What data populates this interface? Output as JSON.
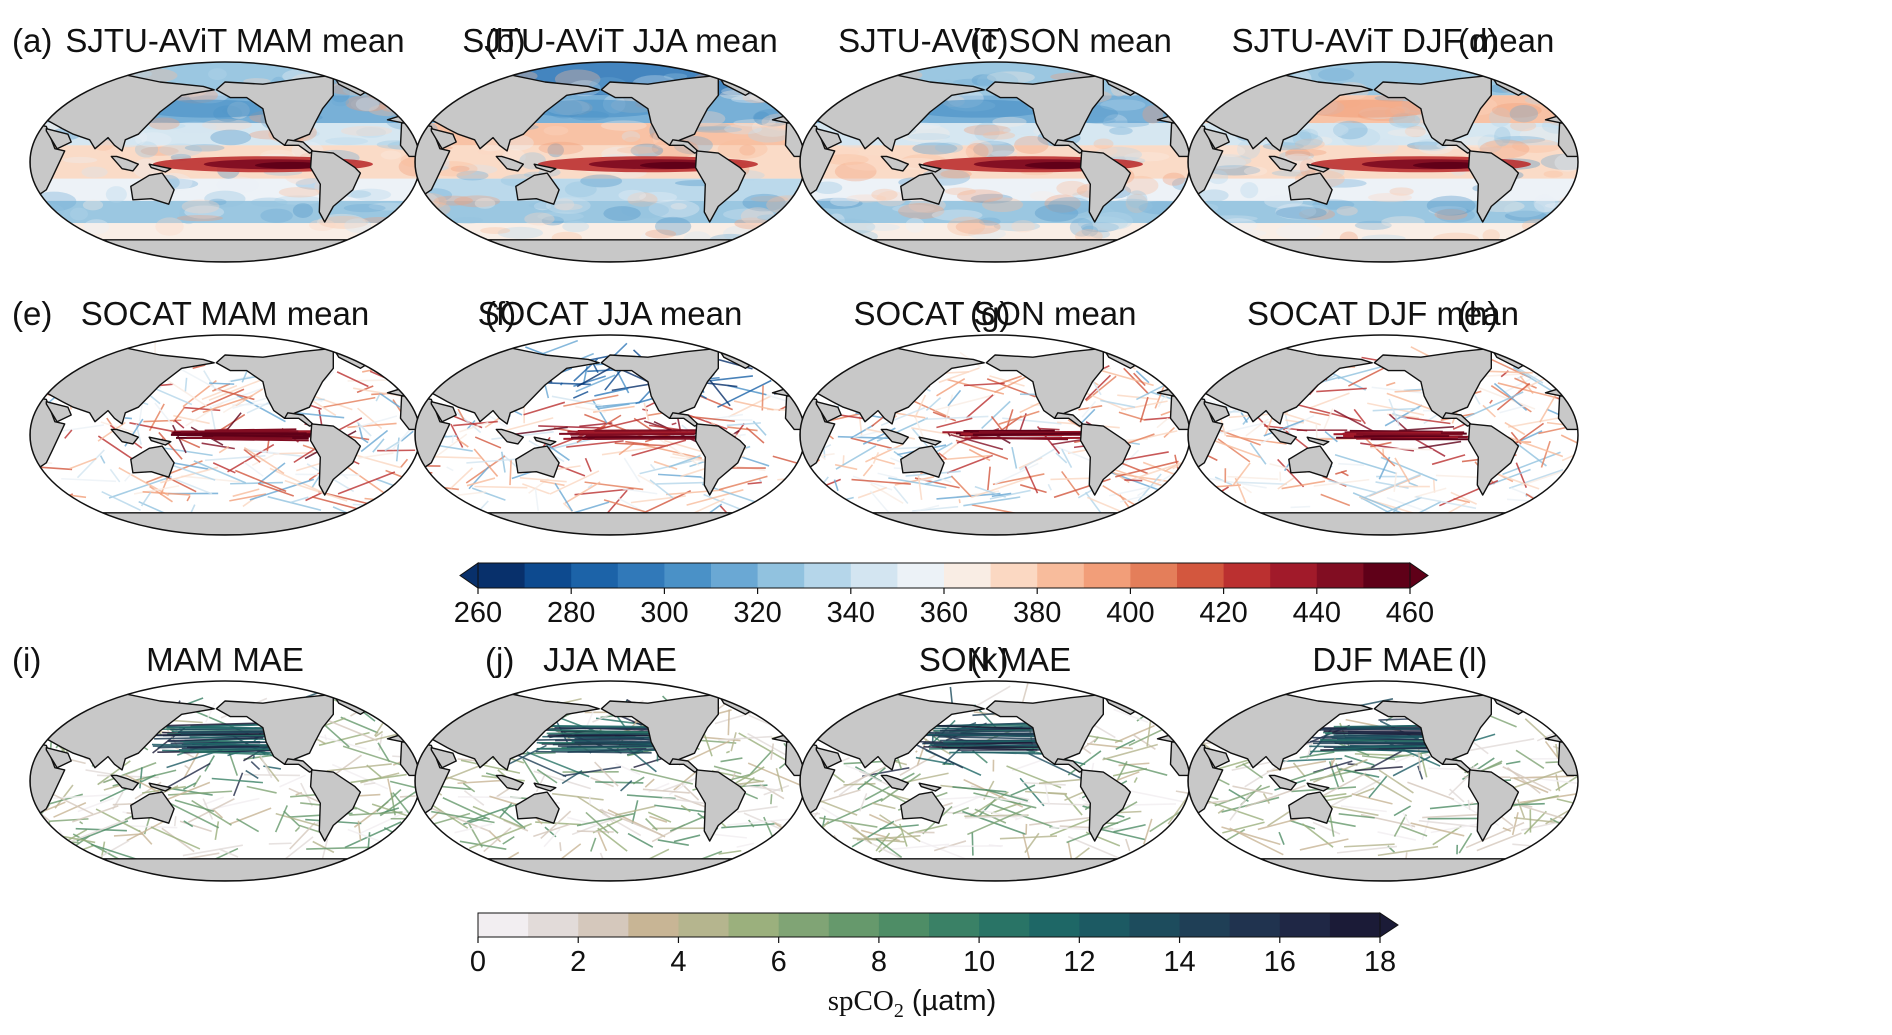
{
  "colors": {
    "ocean_bg": "#f5f1ec",
    "land": "#c8c8c8",
    "coast": "#111111",
    "diverging_palette": [
      "#08306b",
      "#0d4a8f",
      "#1c63a8",
      "#3179b9",
      "#4a91c7",
      "#6aa8d4",
      "#91c2df",
      "#b5d6ea",
      "#d3e5f1",
      "#ecf2f7",
      "#f9ede4",
      "#fbd8c2",
      "#f8bc9c",
      "#f29e79",
      "#e47e5a",
      "#d3573e",
      "#bb3030",
      "#a11a2a",
      "#810d22",
      "#5f0018"
    ],
    "sequential_palette": [
      "#f2eef1",
      "#e2dbd9",
      "#d5c8bc",
      "#c8b595",
      "#b5b58e",
      "#9bb07d",
      "#80a475",
      "#66996c",
      "#4e8d66",
      "#3a8166",
      "#297466",
      "#1e6766",
      "#1c5a63",
      "#1d4c5d",
      "#1f3f56",
      "#20334f",
      "#1f2745",
      "#1b1b37"
    ]
  },
  "panels": [
    {
      "label": "(a)",
      "title": "SJTU-AViT MAM mean"
    },
    {
      "label": "(b)",
      "title": "SJTU-AViT JJA mean"
    },
    {
      "label": "(c)",
      "title": "SJTU-AViT SON mean"
    },
    {
      "label": "(d)",
      "title": "SJTU-AViT DJF mean"
    },
    {
      "label": "(e)",
      "title": "SOCAT MAM mean"
    },
    {
      "label": "(f)",
      "title": "SOCAT JJA mean"
    },
    {
      "label": "(g)",
      "title": "SOCAT SON mean"
    },
    {
      "label": "(h)",
      "title": "SOCAT DJF mean"
    },
    {
      "label": "(i)",
      "title": "MAM MAE"
    },
    {
      "label": "(j)",
      "title": "JJA MAE"
    },
    {
      "label": "(k)",
      "title": "SON MAE"
    },
    {
      "label": "(l)",
      "title": "DJF MAE"
    }
  ],
  "colorbars": {
    "mean": {
      "ticks": [
        "260",
        "280",
        "300",
        "320",
        "340",
        "360",
        "380",
        "400",
        "420",
        "440",
        "460"
      ]
    },
    "mae": {
      "ticks": [
        "0",
        "2",
        "4",
        "6",
        "8",
        "10",
        "12",
        "14",
        "16",
        "18"
      ],
      "label_main": "spCO",
      "label_sub": "2",
      "label_units": " (µatm)"
    }
  },
  "chart_data": {
    "type": "heatmap",
    "projection": "Robinson, Pacific-centred global ocean maps",
    "layout": "3 rows × 4 columns (seasons MAM, JJA, SON, DJF)",
    "rows": [
      {
        "name": "SJTU-AViT mean",
        "quantity": "spCO2 seasonal mean",
        "coverage": "full ocean",
        "colorbar": "mean"
      },
      {
        "name": "SOCAT mean",
        "quantity": "spCO2 seasonal mean",
        "coverage": "ship tracks only",
        "colorbar": "mean"
      },
      {
        "name": "MAE",
        "quantity": "mean absolute error",
        "coverage": "ship tracks only",
        "colorbar": "mae"
      }
    ],
    "seasons": [
      "MAM",
      "JJA",
      "SON",
      "DJF"
    ],
    "colorbar_mean": {
      "range": [
        260,
        460
      ],
      "step": 10,
      "extend": "both",
      "ticks": [
        260,
        280,
        300,
        320,
        340,
        360,
        380,
        400,
        420,
        440,
        460
      ]
    },
    "colorbar_mae": {
      "range": [
        0,
        18
      ],
      "step": 1,
      "extend": "max",
      "ticks": [
        0,
        2,
        4,
        6,
        8,
        10,
        12,
        14,
        16,
        18
      ],
      "units": "µatm",
      "label": "spCO2 (µatm)"
    },
    "features": {
      "equatorial_pacific_upwelling": "> 440",
      "subtropical_gyres": "about 340-360",
      "southern_ocean": "about 350-380",
      "high_northern_latitudes": "< 320 in summer"
    }
  }
}
